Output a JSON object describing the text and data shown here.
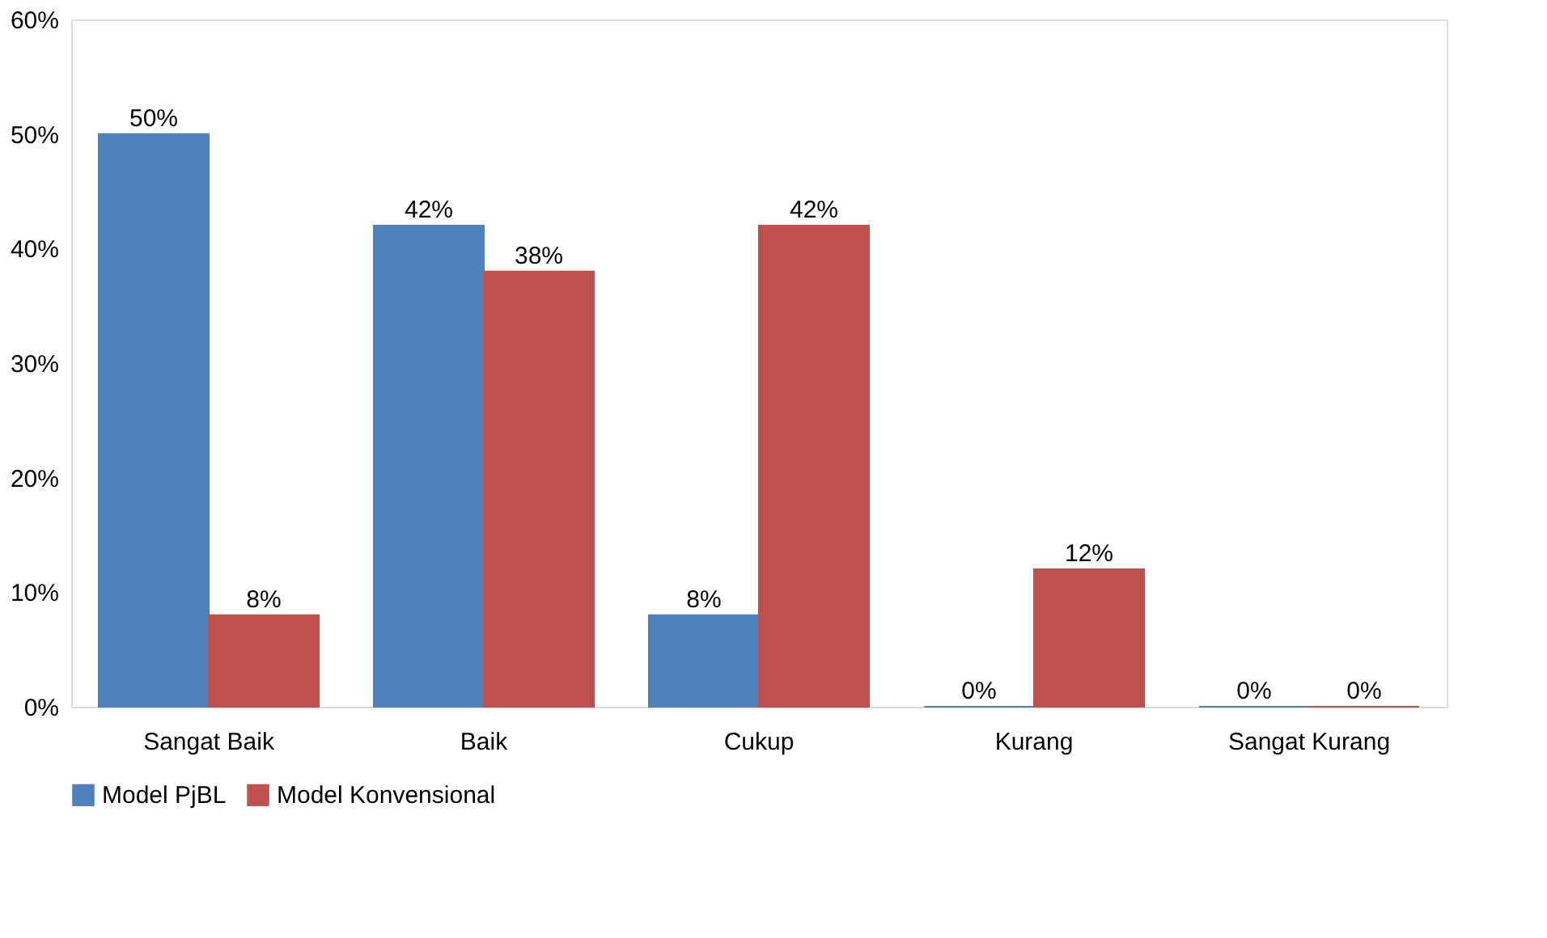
{
  "chart_data": {
    "type": "bar",
    "categories": [
      "Sangat Baik",
      "Baik",
      "Cukup",
      "Kurang",
      "Sangat Kurang"
    ],
    "series": [
      {
        "name": "Model PjBL",
        "color": "#4f81bd",
        "values": [
          50,
          42,
          8,
          0,
          0
        ],
        "value_labels": [
          "50%",
          "42%",
          "8%",
          "0%",
          "0%"
        ]
      },
      {
        "name": "Model Konvensional",
        "color": "#c0504d",
        "values": [
          8,
          38,
          42,
          12,
          0
        ],
        "value_labels": [
          "8%",
          "38%",
          "42%",
          "12%",
          "0%"
        ]
      }
    ],
    "ylim": [
      0,
      60
    ],
    "yticks": [
      {
        "value": 0,
        "label": "0%"
      },
      {
        "value": 10,
        "label": "10%"
      },
      {
        "value": 20,
        "label": "20%"
      },
      {
        "value": 30,
        "label": "30%"
      },
      {
        "value": 40,
        "label": "40%"
      },
      {
        "value": 50,
        "label": "50%"
      },
      {
        "value": 60,
        "label": "60%"
      }
    ],
    "grid": false,
    "legend": "bottom"
  }
}
